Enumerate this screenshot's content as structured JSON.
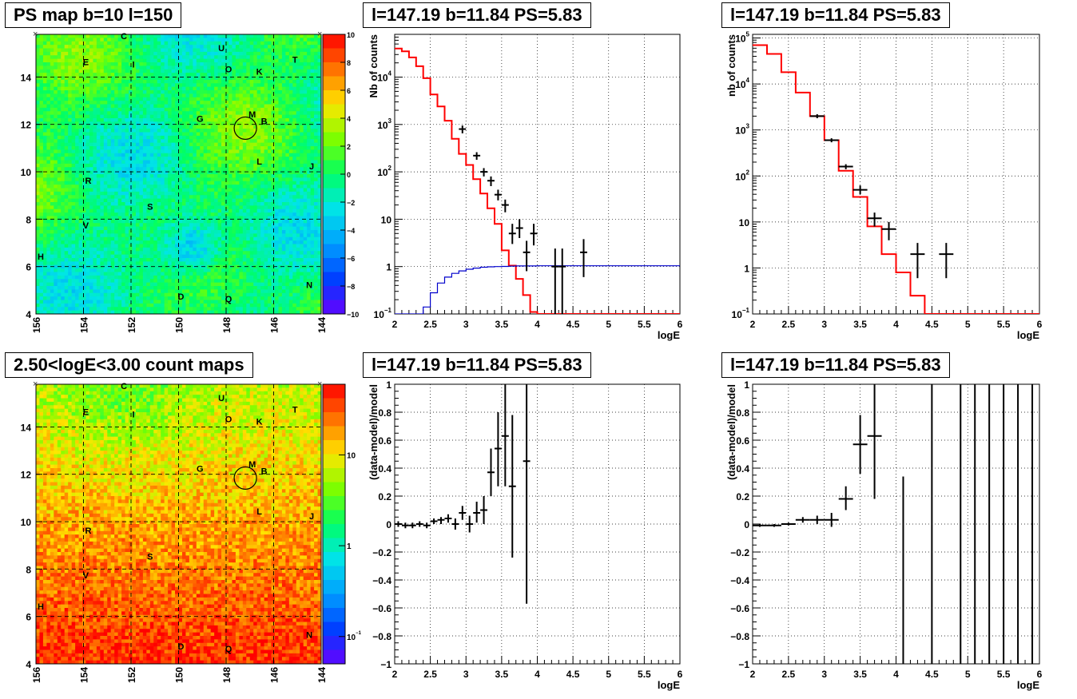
{
  "chart_data": [
    {
      "type": "heatmap",
      "panel": "top-left",
      "title": "PS map b=10 l=150",
      "xlim": [
        156,
        144
      ],
      "ylim": [
        4,
        15.8
      ],
      "xticks": [
        "156",
        "154",
        "152",
        "150",
        "148",
        "146",
        "144"
      ],
      "yticks": [
        "4",
        "6",
        "8",
        "10",
        "12",
        "14"
      ],
      "colorbar": {
        "ticks": [
          "10",
          "8",
          "6",
          "4",
          "2",
          "0",
          "−2",
          "−4",
          "−6",
          "−8",
          "−10"
        ],
        "range": [
          -10,
          10
        ]
      },
      "labels": [
        {
          "t": "C",
          "l": 152.3,
          "b": 15.6
        },
        {
          "t": "U",
          "l": 148.2,
          "b": 15.1
        },
        {
          "t": "E",
          "l": 153.9,
          "b": 14.5
        },
        {
          "t": "I",
          "l": 151.9,
          "b": 14.4
        },
        {
          "t": "T",
          "l": 145.1,
          "b": 14.6
        },
        {
          "t": "O",
          "l": 147.9,
          "b": 14.2
        },
        {
          "t": "K",
          "l": 146.6,
          "b": 14.1
        },
        {
          "t": "G",
          "l": 149.1,
          "b": 12.1
        },
        {
          "t": "M",
          "l": 146.9,
          "b": 12.3
        },
        {
          "t": "B",
          "l": 146.4,
          "b": 12.0
        },
        {
          "t": "L",
          "l": 146.6,
          "b": 10.3
        },
        {
          "t": "J",
          "l": 144.4,
          "b": 10.1
        },
        {
          "t": "R",
          "l": 153.8,
          "b": 9.5
        },
        {
          "t": "S",
          "l": 151.2,
          "b": 8.4
        },
        {
          "t": "V",
          "l": 153.9,
          "b": 7.6
        },
        {
          "t": "H",
          "l": 155.8,
          "b": 6.3
        },
        {
          "t": "N",
          "l": 144.5,
          "b": 5.1
        },
        {
          "t": "D",
          "l": 149.9,
          "b": 4.6
        },
        {
          "t": "Q",
          "l": 147.9,
          "b": 4.5
        }
      ],
      "marker": {
        "l": 147.19,
        "b": 11.84
      }
    },
    {
      "type": "line",
      "panel": "top-middle",
      "title": "l=147.19 b=11.84 PS=5.83",
      "xlabel": "logE",
      "ylabel": "Nb of counts",
      "xlim": [
        2,
        6
      ],
      "ylim": [
        0.1,
        80000
      ],
      "yscale": "log",
      "xticks": [
        "2",
        "2.5",
        "3",
        "3.5",
        "4",
        "4.5",
        "5",
        "5.5",
        "6"
      ],
      "yticks": [
        {
          "v": 0.1,
          "t": "10",
          "sup": "−1"
        },
        {
          "v": 1,
          "t": "1"
        },
        {
          "v": 10,
          "t": "10"
        },
        {
          "v": 100,
          "t": "10",
          "sup": "2"
        },
        {
          "v": 1000,
          "t": "10",
          "sup": "3"
        },
        {
          "v": 10000,
          "t": "10",
          "sup": "4"
        }
      ],
      "series": [
        {
          "color": "#ff0000",
          "edges": [
            2,
            2.1,
            2.2,
            2.3,
            2.4,
            2.5,
            2.6,
            2.7,
            2.8,
            2.9,
            3.0,
            3.1,
            3.2,
            3.3,
            3.4,
            3.5,
            3.6,
            3.7,
            3.8,
            3.9,
            4.0,
            6.0
          ],
          "values": [
            40000,
            35000,
            26000,
            17000,
            9500,
            4300,
            2400,
            1200,
            500,
            240,
            140,
            70,
            35,
            17,
            8,
            2.2,
            1.05,
            0.55,
            0.25,
            0.11,
            0.1
          ]
        },
        {
          "color": "#0000cc",
          "edges": [
            2.0,
            2.4,
            2.5,
            2.6,
            2.7,
            2.8,
            2.9,
            3.0,
            3.1,
            3.2,
            3.3,
            3.4,
            3.5,
            3.6,
            3.7,
            4.0,
            6.0
          ],
          "values": [
            0.1,
            0.14,
            0.28,
            0.45,
            0.6,
            0.72,
            0.81,
            0.88,
            0.93,
            0.97,
            0.99,
            1.0,
            1.01,
            1.02,
            1.03,
            1.04
          ]
        }
      ],
      "points": [
        {
          "x": 2.95,
          "y": 800,
          "xe": 0.05,
          "lo": 650,
          "hi": 950
        },
        {
          "x": 3.15,
          "y": 220,
          "xe": 0.05,
          "lo": 180,
          "hi": 260
        },
        {
          "x": 3.25,
          "y": 100,
          "xe": 0.05,
          "lo": 80,
          "hi": 120
        },
        {
          "x": 3.35,
          "y": 65,
          "xe": 0.05,
          "lo": 50,
          "hi": 80
        },
        {
          "x": 3.45,
          "y": 33,
          "xe": 0.05,
          "lo": 25,
          "hi": 42
        },
        {
          "x": 3.55,
          "y": 20,
          "xe": 0.05,
          "lo": 14,
          "hi": 26
        },
        {
          "x": 3.65,
          "y": 5,
          "xe": 0.05,
          "lo": 3,
          "hi": 8
        },
        {
          "x": 3.75,
          "y": 6.5,
          "xe": 0.05,
          "lo": 4,
          "hi": 10
        },
        {
          "x": 3.85,
          "y": 2,
          "xe": 0.05,
          "lo": 0.8,
          "hi": 3.5
        },
        {
          "x": 3.95,
          "y": 5,
          "xe": 0.05,
          "lo": 2.8,
          "hi": 8
        },
        {
          "x": 4.25,
          "y": 1,
          "xe": 0.05,
          "lo": 0.1,
          "hi": 2.4
        },
        {
          "x": 4.35,
          "y": 1,
          "xe": 0.05,
          "lo": 0.1,
          "hi": 2.4
        },
        {
          "x": 4.65,
          "y": 2,
          "xe": 0.05,
          "lo": 0.6,
          "hi": 3.8
        }
      ]
    },
    {
      "type": "line",
      "panel": "top-right",
      "title": "l=147.19 b=11.84 PS=5.83",
      "xlabel": "logE",
      "ylabel": "nb of counts",
      "xlim": [
        2,
        6
      ],
      "ylim": [
        0.1,
        120000
      ],
      "yscale": "log",
      "xticks": [
        "2",
        "2.5",
        "3",
        "3.5",
        "4",
        "4.5",
        "5",
        "5.5",
        "6"
      ],
      "yticks": [
        {
          "v": 0.1,
          "t": "10",
          "sup": "−1"
        },
        {
          "v": 1,
          "t": "1"
        },
        {
          "v": 10,
          "t": "10"
        },
        {
          "v": 100,
          "t": "10",
          "sup": "2"
        },
        {
          "v": 1000,
          "t": "10",
          "sup": "3"
        },
        {
          "v": 10000,
          "t": "10",
          "sup": "4"
        },
        {
          "v": 100000,
          "t": "10",
          "sup": "5"
        }
      ],
      "series": [
        {
          "color": "#ff0000",
          "edges": [
            2.0,
            2.2,
            2.4,
            2.6,
            2.8,
            3.0,
            3.2,
            3.4,
            3.6,
            3.8,
            4.0,
            4.2,
            4.4,
            6.0
          ],
          "values": [
            70000,
            45000,
            18000,
            6500,
            2000,
            600,
            130,
            35,
            8,
            2,
            0.8,
            0.25,
            0.1
          ]
        }
      ],
      "points": [
        {
          "x": 2.9,
          "y": 2000,
          "xe": 0.1,
          "lo": 1800,
          "hi": 2200
        },
        {
          "x": 3.1,
          "y": 600,
          "xe": 0.1,
          "lo": 540,
          "hi": 660
        },
        {
          "x": 3.3,
          "y": 160,
          "xe": 0.1,
          "lo": 140,
          "hi": 180
        },
        {
          "x": 3.5,
          "y": 50,
          "xe": 0.1,
          "lo": 40,
          "hi": 62
        },
        {
          "x": 3.7,
          "y": 12,
          "xe": 0.1,
          "lo": 8,
          "hi": 16
        },
        {
          "x": 3.9,
          "y": 7,
          "xe": 0.1,
          "lo": 4,
          "hi": 10
        },
        {
          "x": 4.3,
          "y": 2,
          "xe": 0.1,
          "lo": 0.6,
          "hi": 3.5
        },
        {
          "x": 4.7,
          "y": 2,
          "xe": 0.1,
          "lo": 0.6,
          "hi": 3.5
        }
      ]
    },
    {
      "type": "heatmap",
      "panel": "bottom-left",
      "title": "2.50<logE<3.00 count maps",
      "xlim": [
        156,
        144
      ],
      "ylim": [
        4,
        15.8
      ],
      "xticks": [
        "156",
        "154",
        "152",
        "150",
        "148",
        "146",
        "144"
      ],
      "yticks": [
        "4",
        "6",
        "8",
        "10",
        "12",
        "14"
      ],
      "colorbar": {
        "ticks": [
          {
            "v": 10,
            "t": "10"
          },
          {
            "v": 1,
            "t": "1"
          },
          {
            "v": 0.1,
            "t": "10",
            "sup": "−1"
          }
        ],
        "range": [
          0.05,
          60
        ]
      },
      "labels": [
        {
          "t": "C",
          "l": 152.3,
          "b": 15.6
        },
        {
          "t": "U",
          "l": 148.2,
          "b": 15.1
        },
        {
          "t": "E",
          "l": 153.9,
          "b": 14.5
        },
        {
          "t": "I",
          "l": 151.9,
          "b": 14.4
        },
        {
          "t": "T",
          "l": 145.1,
          "b": 14.6
        },
        {
          "t": "O",
          "l": 147.9,
          "b": 14.2
        },
        {
          "t": "K",
          "l": 146.6,
          "b": 14.1
        },
        {
          "t": "G",
          "l": 149.1,
          "b": 12.1
        },
        {
          "t": "M",
          "l": 146.9,
          "b": 12.3
        },
        {
          "t": "B",
          "l": 146.4,
          "b": 12.0
        },
        {
          "t": "L",
          "l": 146.6,
          "b": 10.3
        },
        {
          "t": "J",
          "l": 144.4,
          "b": 10.1
        },
        {
          "t": "R",
          "l": 153.8,
          "b": 9.5
        },
        {
          "t": "S",
          "l": 151.2,
          "b": 8.4
        },
        {
          "t": "V",
          "l": 153.9,
          "b": 7.6
        },
        {
          "t": "H",
          "l": 155.8,
          "b": 6.3
        },
        {
          "t": "N",
          "l": 144.5,
          "b": 5.1
        },
        {
          "t": "D",
          "l": 149.9,
          "b": 4.6
        },
        {
          "t": "Q",
          "l": 147.9,
          "b": 4.5
        }
      ],
      "marker": {
        "l": 147.19,
        "b": 11.84
      }
    },
    {
      "type": "scatter",
      "panel": "bottom-middle",
      "title": "l=147.19 b=11.84 PS=5.83",
      "xlabel": "logE",
      "ylabel": "(data-model)/model",
      "xlim": [
        2,
        6
      ],
      "ylim": [
        -1,
        1
      ],
      "xticks": [
        "2",
        "2.5",
        "3",
        "3.5",
        "4",
        "4.5",
        "5",
        "5.5",
        "6"
      ],
      "yticks": [
        "−1",
        "−0.8",
        "−0.6",
        "−0.4",
        "−0.2",
        "0",
        "0.2",
        "0.4",
        "0.6",
        "0.8",
        "1"
      ],
      "points": [
        {
          "x": 2.05,
          "y": 0.0,
          "xe": 0.05,
          "lo": -0.02,
          "hi": 0.02
        },
        {
          "x": 2.15,
          "y": -0.01,
          "xe": 0.05,
          "lo": -0.03,
          "hi": 0.01
        },
        {
          "x": 2.25,
          "y": -0.01,
          "xe": 0.05,
          "lo": -0.03,
          "hi": 0.01
        },
        {
          "x": 2.35,
          "y": 0.0,
          "xe": 0.05,
          "lo": -0.02,
          "hi": 0.02
        },
        {
          "x": 2.45,
          "y": -0.01,
          "xe": 0.05,
          "lo": -0.03,
          "hi": 0.01
        },
        {
          "x": 2.55,
          "y": 0.02,
          "xe": 0.05,
          "lo": 0.0,
          "hi": 0.04
        },
        {
          "x": 2.65,
          "y": 0.03,
          "xe": 0.05,
          "lo": 0.0,
          "hi": 0.05
        },
        {
          "x": 2.75,
          "y": 0.04,
          "xe": 0.05,
          "lo": 0.01,
          "hi": 0.07
        },
        {
          "x": 2.85,
          "y": 0.0,
          "xe": 0.05,
          "lo": -0.04,
          "hi": 0.04
        },
        {
          "x": 2.95,
          "y": 0.08,
          "xe": 0.05,
          "lo": 0.03,
          "hi": 0.13
        },
        {
          "x": 3.05,
          "y": 0.0,
          "xe": 0.05,
          "lo": -0.06,
          "hi": 0.06
        },
        {
          "x": 3.15,
          "y": 0.08,
          "xe": 0.05,
          "lo": 0.01,
          "hi": 0.16
        },
        {
          "x": 3.25,
          "y": 0.1,
          "xe": 0.05,
          "lo": 0.0,
          "hi": 0.2
        },
        {
          "x": 3.35,
          "y": 0.37,
          "xe": 0.05,
          "lo": 0.2,
          "hi": 0.54
        },
        {
          "x": 3.45,
          "y": 0.54,
          "xe": 0.05,
          "lo": 0.27,
          "hi": 0.8
        },
        {
          "x": 3.55,
          "y": 0.63,
          "xe": 0.05,
          "lo": 0.27,
          "hi": 1.0
        },
        {
          "x": 3.65,
          "y": 0.27,
          "xe": 0.05,
          "lo": -0.24,
          "hi": 0.78
        },
        {
          "x": 3.85,
          "y": 0.45,
          "xe": 0.05,
          "lo": -0.57,
          "hi": 1.0
        }
      ]
    },
    {
      "type": "scatter",
      "panel": "bottom-right",
      "title": "l=147.19 b=11.84 PS=5.83",
      "xlabel": "logE",
      "ylabel": "(data-model)/model",
      "xlim": [
        2,
        6
      ],
      "ylim": [
        -1,
        1
      ],
      "xticks": [
        "2",
        "2.5",
        "3",
        "3.5",
        "4",
        "4.5",
        "5",
        "5.5",
        "6"
      ],
      "yticks": [
        "−1",
        "−0.8",
        "−0.6",
        "−0.4",
        "−0.2",
        "0",
        "0.2",
        "0.4",
        "0.6",
        "0.8",
        "1"
      ],
      "points": [
        {
          "x": 2.1,
          "y": -0.01,
          "xe": 0.1,
          "lo": -0.02,
          "hi": 0.0
        },
        {
          "x": 2.3,
          "y": -0.01,
          "xe": 0.1,
          "lo": -0.02,
          "hi": 0.0
        },
        {
          "x": 2.5,
          "y": 0.0,
          "xe": 0.1,
          "lo": -0.01,
          "hi": 0.01
        },
        {
          "x": 2.7,
          "y": 0.03,
          "xe": 0.1,
          "lo": 0.01,
          "hi": 0.05
        },
        {
          "x": 2.9,
          "y": 0.03,
          "xe": 0.1,
          "lo": 0.0,
          "hi": 0.06
        },
        {
          "x": 3.1,
          "y": 0.03,
          "xe": 0.1,
          "lo": -0.02,
          "hi": 0.08
        },
        {
          "x": 3.3,
          "y": 0.18,
          "xe": 0.1,
          "lo": 0.1,
          "hi": 0.27
        },
        {
          "x": 3.5,
          "y": 0.57,
          "xe": 0.1,
          "lo": 0.36,
          "hi": 0.78
        },
        {
          "x": 3.7,
          "y": 0.63,
          "xe": 0.1,
          "lo": 0.18,
          "hi": 1.0
        },
        {
          "x": 4.1,
          "y": -1.0,
          "xe": 0,
          "lo": -1.0,
          "hi": 0.34
        },
        {
          "x": 4.5,
          "y": -1.0,
          "xe": 0,
          "lo": -1.0,
          "hi": 1.0
        },
        {
          "x": 4.9,
          "y": -1.0,
          "xe": 0,
          "lo": -1.0,
          "hi": 1.0
        },
        {
          "x": 5.1,
          "y": -1.0,
          "xe": 0,
          "lo": -1.0,
          "hi": 1.0
        },
        {
          "x": 5.3,
          "y": -1.0,
          "xe": 0,
          "lo": -1.0,
          "hi": 1.0
        },
        {
          "x": 5.5,
          "y": -1.0,
          "xe": 0,
          "lo": -1.0,
          "hi": 1.0
        },
        {
          "x": 5.7,
          "y": -1.0,
          "xe": 0,
          "lo": -1.0,
          "hi": 1.0
        },
        {
          "x": 5.9,
          "y": -1.0,
          "xe": 0,
          "lo": -1.0,
          "hi": 1.0
        }
      ]
    }
  ]
}
